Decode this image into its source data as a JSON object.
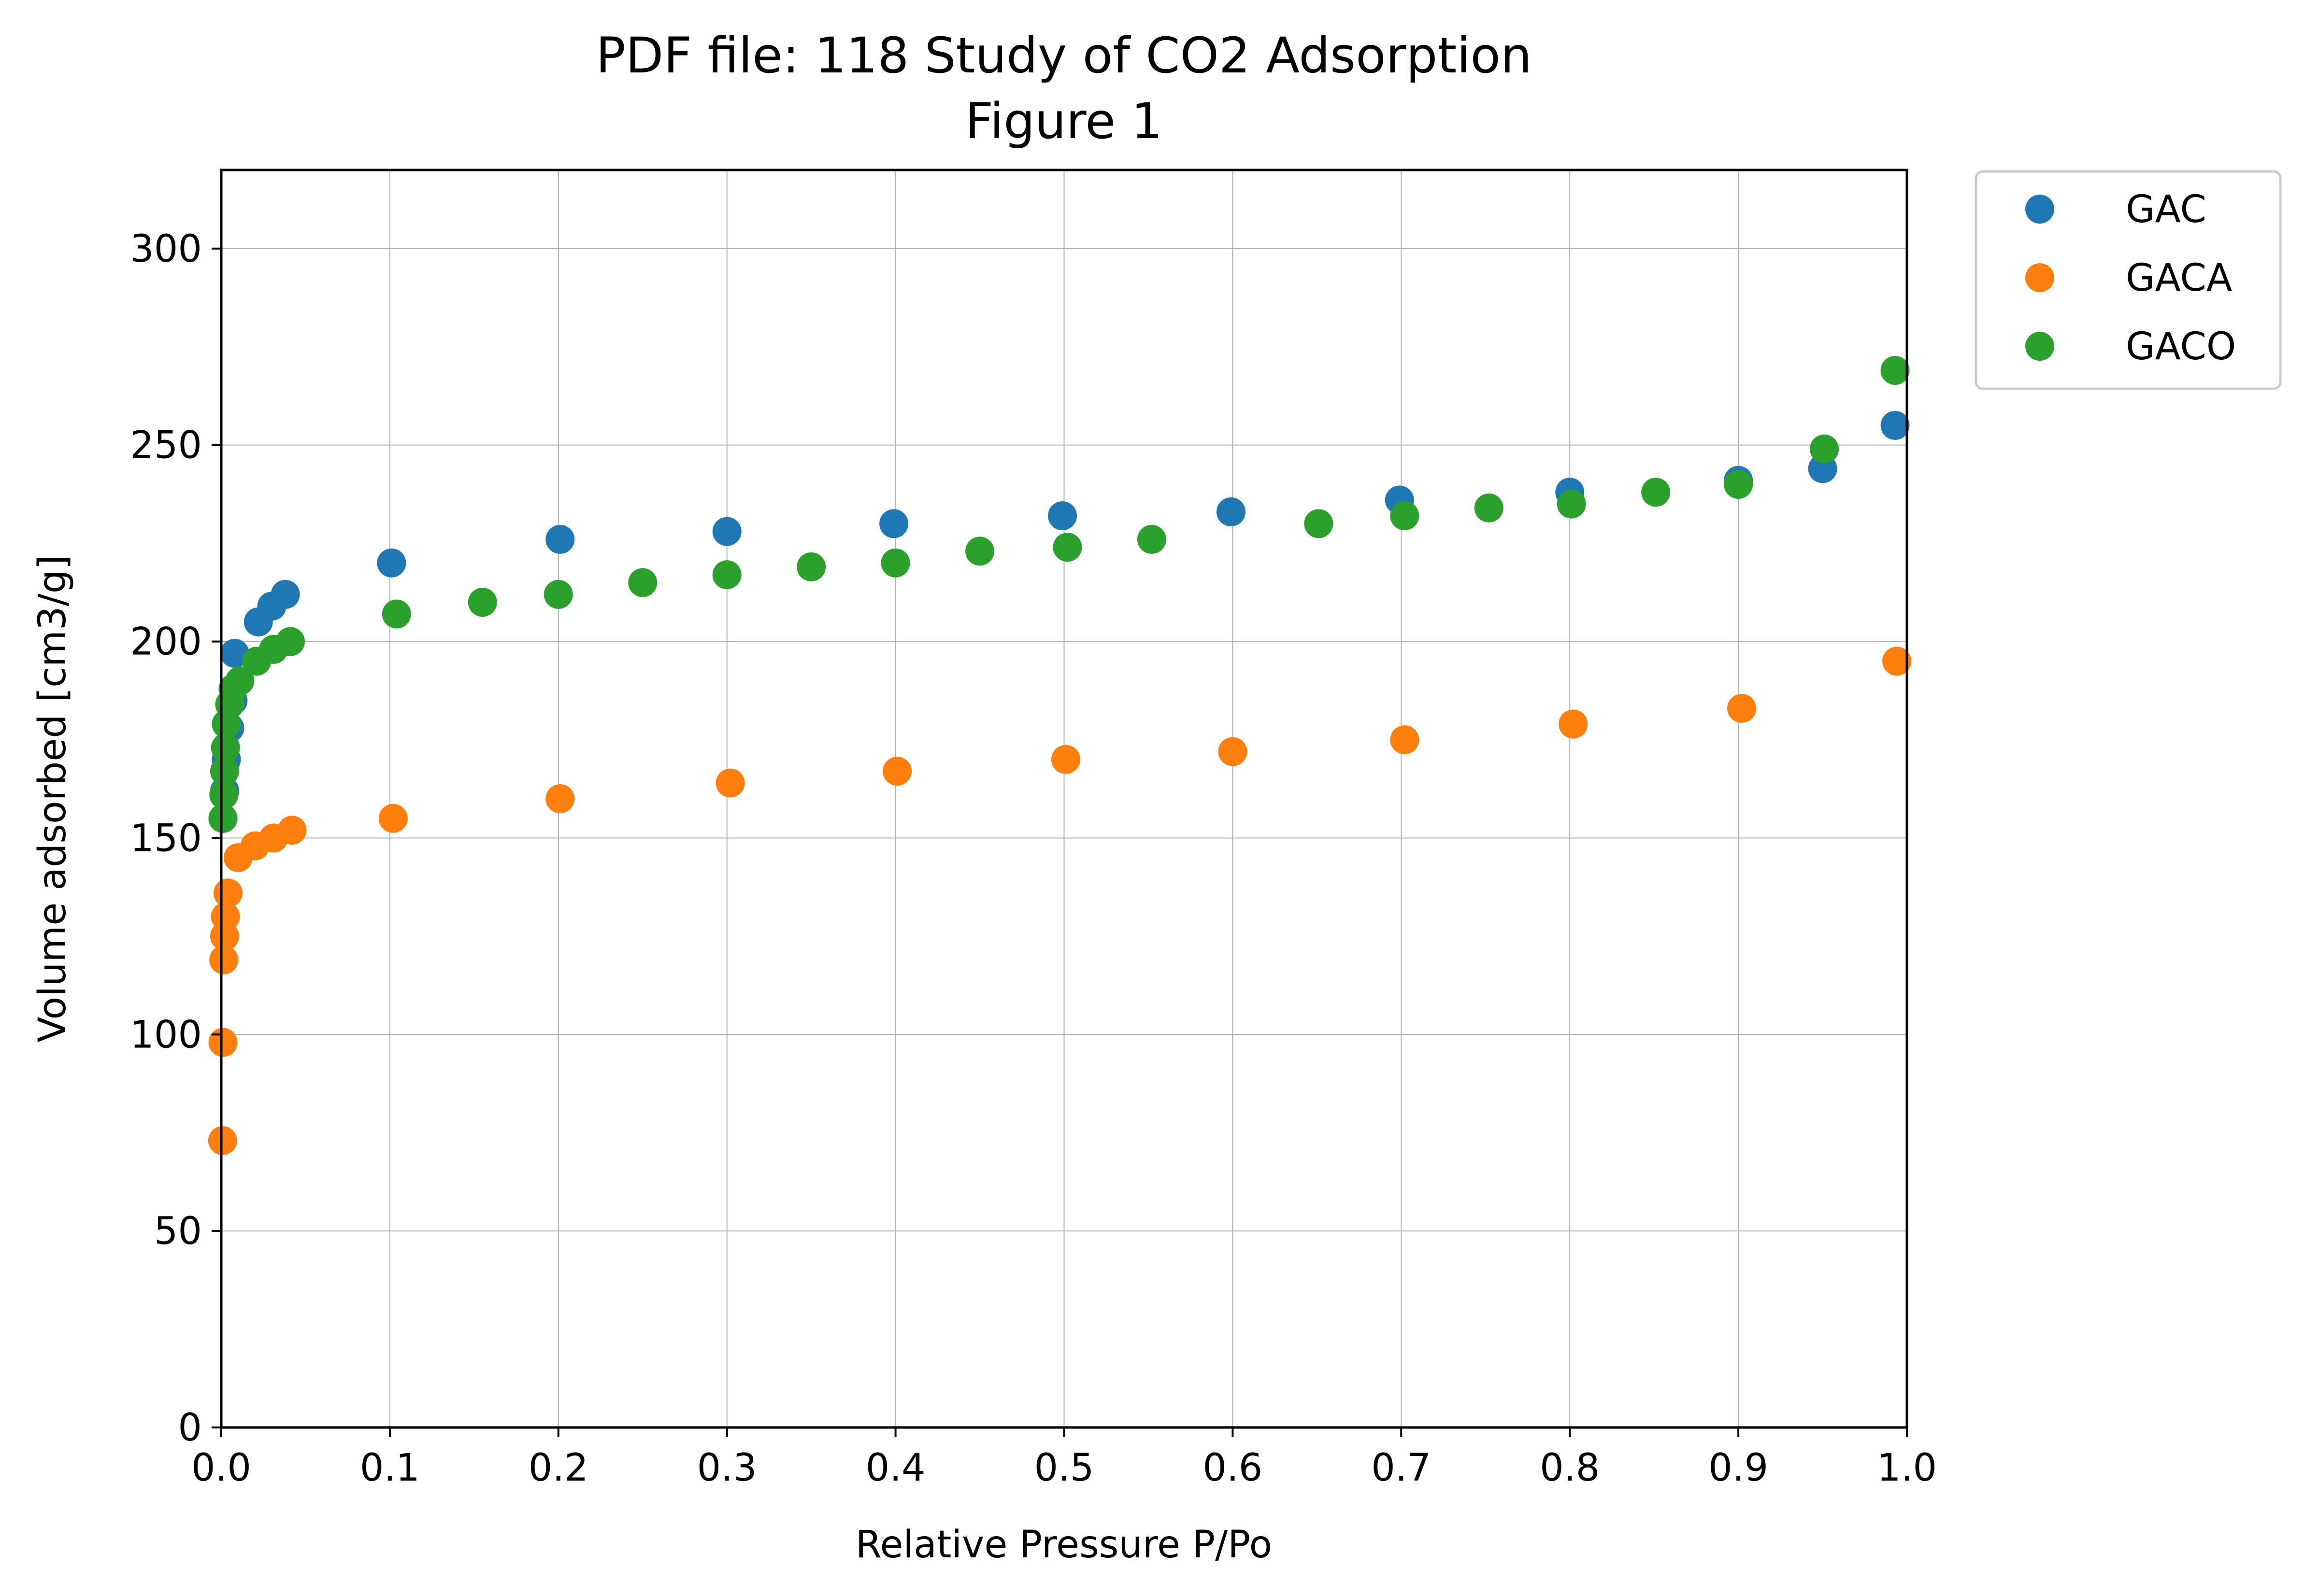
{
  "chart_data": {
    "type": "scatter",
    "title": "PDF file: 118 Study of CO2 Adsorption",
    "subtitle": "Figure 1",
    "xlabel": "Relative Pressure P/Po",
    "ylabel": "Volume adsorbed [cm3/g]",
    "xlim": [
      0.0,
      1.0
    ],
    "ylim": [
      0,
      320
    ],
    "xticks": [
      "0.0",
      "0.1",
      "0.2",
      "0.3",
      "0.4",
      "0.5",
      "0.6",
      "0.7",
      "0.8",
      "0.9",
      "1.0"
    ],
    "yticks": [
      "0",
      "50",
      "100",
      "150",
      "200",
      "250",
      "300"
    ],
    "grid": true,
    "legend_position": "outside-top-right",
    "series": [
      {
        "name": "GAC",
        "color": "#1f77b4",
        "points": [
          [
            0.001,
            155
          ],
          [
            0.002,
            162
          ],
          [
            0.003,
            170
          ],
          [
            0.005,
            178
          ],
          [
            0.007,
            185
          ],
          [
            0.008,
            197
          ],
          [
            0.022,
            205
          ],
          [
            0.03,
            209
          ],
          [
            0.038,
            212
          ],
          [
            0.101,
            220
          ],
          [
            0.201,
            226
          ],
          [
            0.3,
            228
          ],
          [
            0.399,
            230
          ],
          [
            0.499,
            232
          ],
          [
            0.599,
            233
          ],
          [
            0.699,
            236
          ],
          [
            0.8,
            238
          ],
          [
            0.9,
            241
          ],
          [
            0.95,
            244
          ],
          [
            0.993,
            255
          ]
        ]
      },
      {
        "name": "GACA",
        "color": "#ff7f0e",
        "points": [
          [
            0.0008,
            73
          ],
          [
            0.001,
            98
          ],
          [
            0.0015,
            119
          ],
          [
            0.002,
            125
          ],
          [
            0.0025,
            130
          ],
          [
            0.004,
            136
          ],
          [
            0.01,
            145
          ],
          [
            0.02,
            148
          ],
          [
            0.031,
            150
          ],
          [
            0.042,
            152
          ],
          [
            0.102,
            155
          ],
          [
            0.201,
            160
          ],
          [
            0.302,
            164
          ],
          [
            0.401,
            167
          ],
          [
            0.501,
            170
          ],
          [
            0.6,
            172
          ],
          [
            0.702,
            175
          ],
          [
            0.802,
            179
          ],
          [
            0.902,
            183
          ],
          [
            0.994,
            195
          ]
        ]
      },
      {
        "name": "GACO",
        "color": "#2ca02c",
        "points": [
          [
            0.001,
            155
          ],
          [
            0.0015,
            161
          ],
          [
            0.002,
            167
          ],
          [
            0.0025,
            173
          ],
          [
            0.003,
            179
          ],
          [
            0.005,
            184
          ],
          [
            0.007,
            188
          ],
          [
            0.011,
            190
          ],
          [
            0.021,
            195
          ],
          [
            0.031,
            198
          ],
          [
            0.041,
            200
          ],
          [
            0.104,
            207
          ],
          [
            0.155,
            210
          ],
          [
            0.2,
            212
          ],
          [
            0.25,
            215
          ],
          [
            0.3,
            217
          ],
          [
            0.35,
            219
          ],
          [
            0.4,
            220
          ],
          [
            0.45,
            223
          ],
          [
            0.502,
            224
          ],
          [
            0.552,
            226
          ],
          [
            0.651,
            230
          ],
          [
            0.702,
            232
          ],
          [
            0.752,
            234
          ],
          [
            0.801,
            235
          ],
          [
            0.851,
            238
          ],
          [
            0.9,
            240
          ],
          [
            0.951,
            249
          ],
          [
            0.993,
            269
          ]
        ]
      }
    ]
  }
}
